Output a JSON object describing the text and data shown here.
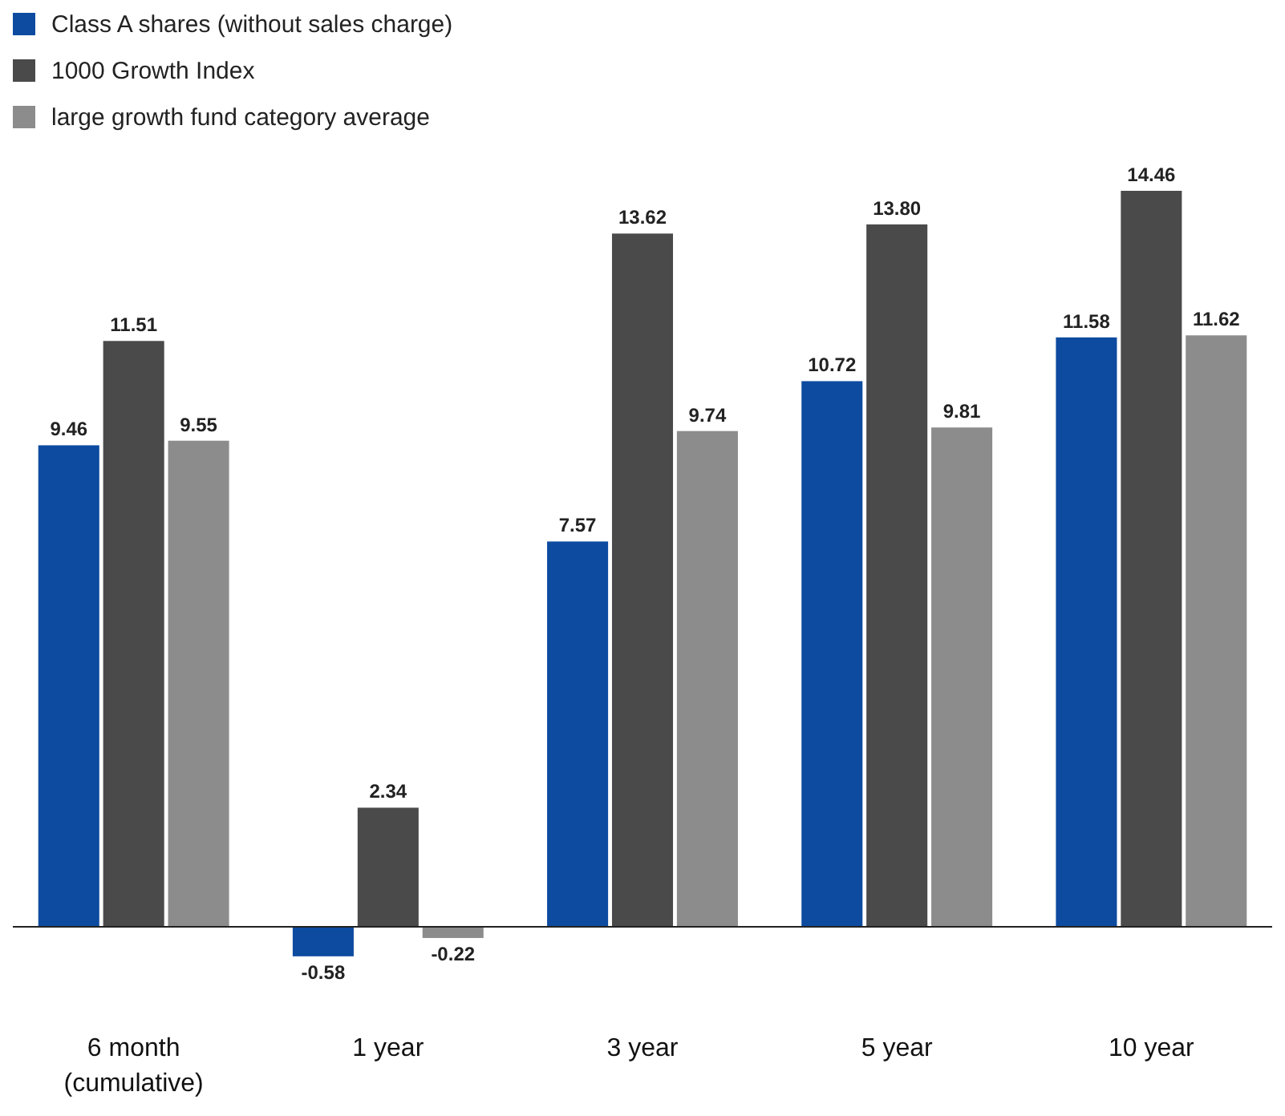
{
  "chart_data": {
    "type": "bar",
    "categories": [
      "6 month (cumulative)",
      "1 year",
      "3 year",
      "5 year",
      "10 year"
    ],
    "series": [
      {
        "name": "Class A shares (without sales charge)",
        "color": "#0d4ba0",
        "values": [
          9.46,
          -0.58,
          7.57,
          10.72,
          11.58
        ],
        "value_labels": [
          "9.46",
          "-0.58",
          "7.57",
          "10.72",
          "11.58"
        ]
      },
      {
        "name": "1000 Growth Index",
        "color": "#4a4a4a",
        "values": [
          11.51,
          2.34,
          13.62,
          13.8,
          14.46
        ],
        "value_labels": [
          "11.51",
          "2.34",
          "13.62",
          "13.80",
          "14.46"
        ]
      },
      {
        "name": "large growth fund category average",
        "color": "#8c8c8c",
        "values": [
          9.55,
          -0.22,
          9.74,
          9.81,
          11.62
        ],
        "value_labels": [
          "9.55",
          "-0.22",
          "9.74",
          "9.81",
          "11.62"
        ]
      }
    ],
    "legend": "top left"
  }
}
